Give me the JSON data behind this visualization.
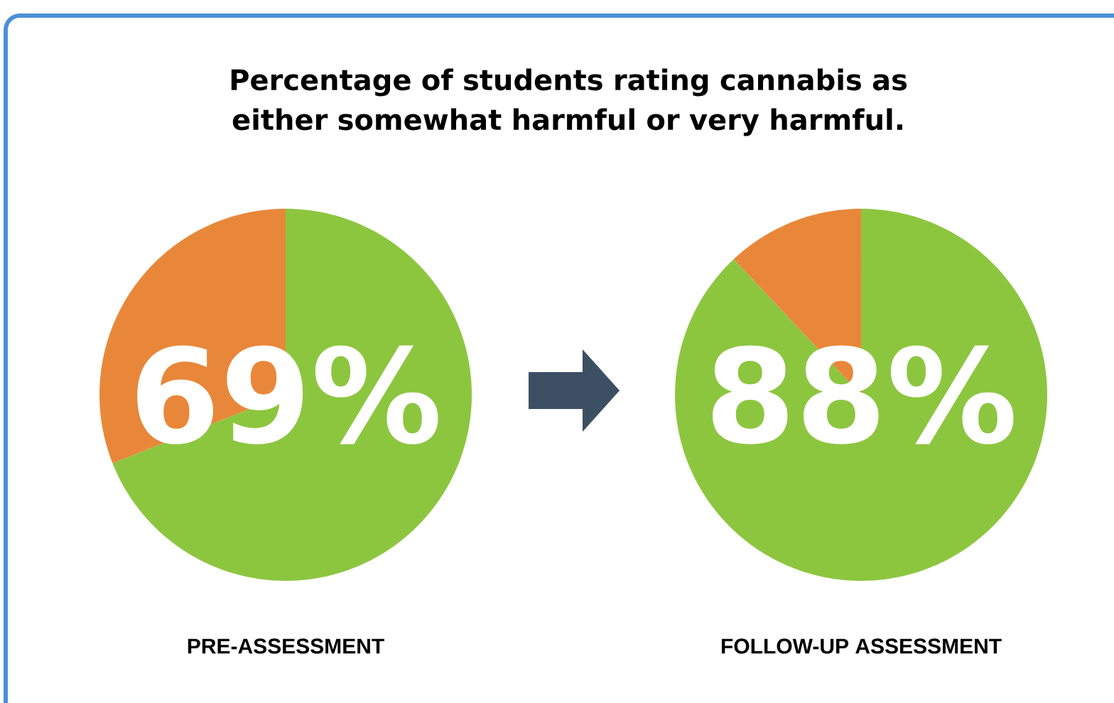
{
  "chart_data": [
    {
      "type": "pie",
      "title": "Percentage of students rating cannabis as either somewhat harmful or very harmful.",
      "xlabel": "PRE-ASSESSMENT",
      "categories": [
        null,
        null
      ],
      "values": [
        69,
        31
      ],
      "colors": [
        "#8cc63f",
        "#e8873a"
      ],
      "value_labels": [
        "69%",
        null
      ]
    },
    {
      "type": "pie",
      "xlabel": "FOLLOW-UP ASSESSMENT",
      "categories": [
        null,
        null
      ],
      "values": [
        88,
        12
      ],
      "colors": [
        "#8cc63f",
        "#e8873a"
      ],
      "value_labels": [
        "88%",
        null
      ]
    }
  ]
}
